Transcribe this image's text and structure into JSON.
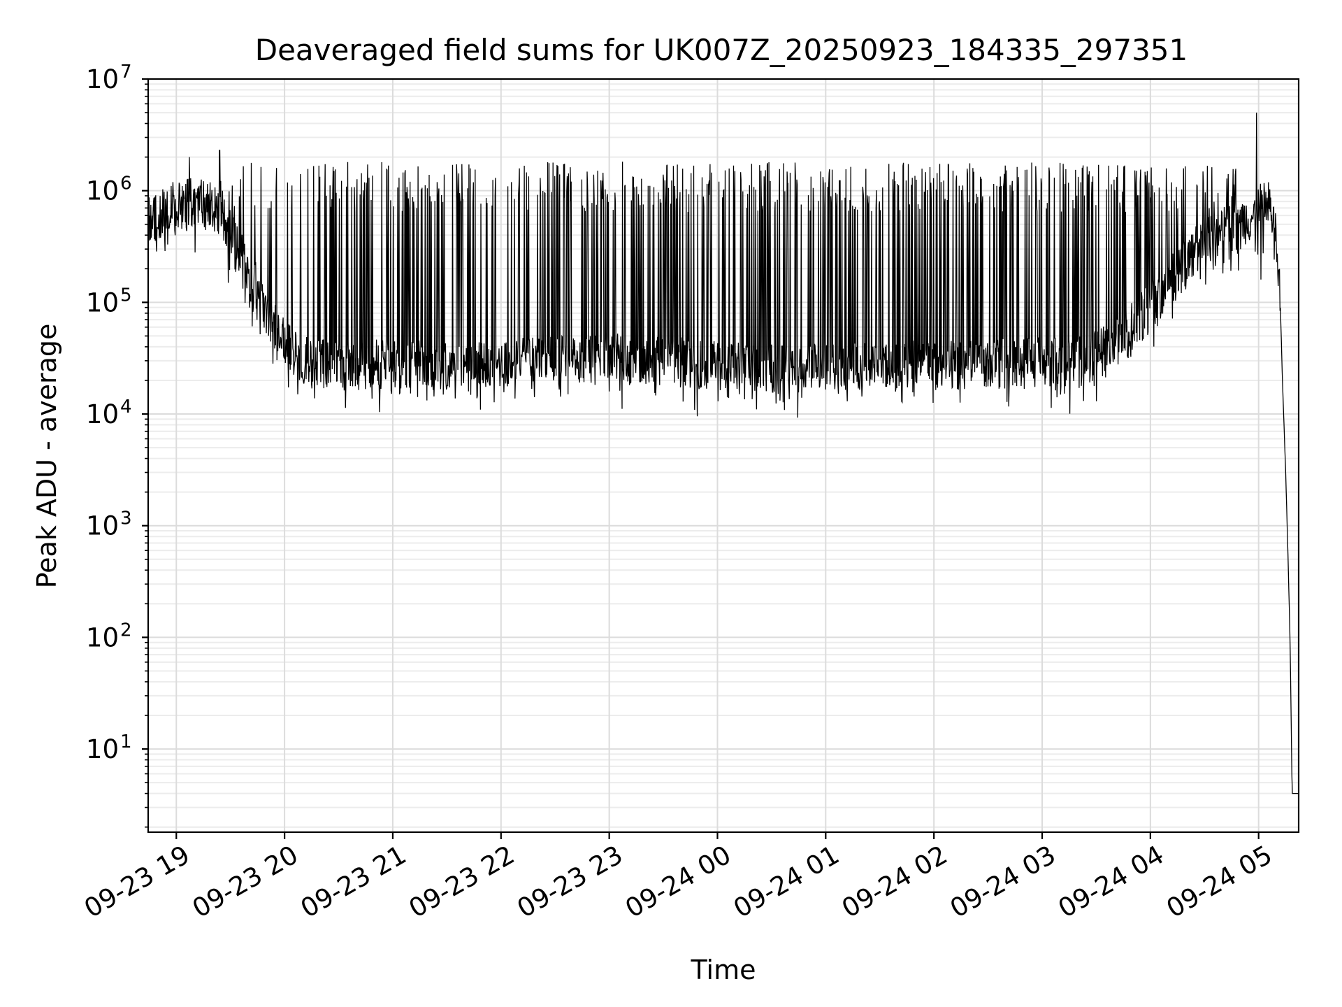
{
  "chart_data": {
    "type": "line",
    "title": "Deaveraged field sums for UK007Z_20250923_184335_297351",
    "xlabel": "Time",
    "ylabel": "Peak ADU - average",
    "yscale": "log",
    "ylim": [
      1.8,
      10000000
    ],
    "grid": true,
    "x_range_hours": [
      -0.26,
      10.37
    ],
    "x_tick_labels": [
      "09-23 19",
      "09-23 20",
      "09-23 21",
      "09-23 22",
      "09-23 23",
      "09-24 00",
      "09-24 01",
      "09-24 02",
      "09-24 03",
      "09-24 04",
      "09-24 05"
    ],
    "y_ticks": [
      {
        "base": "10",
        "exp": "1",
        "value": 10
      },
      {
        "base": "10",
        "exp": "2",
        "value": 100
      },
      {
        "base": "10",
        "exp": "3",
        "value": 1000
      },
      {
        "base": "10",
        "exp": "4",
        "value": 10000
      },
      {
        "base": "10",
        "exp": "5",
        "value": 100000
      },
      {
        "base": "10",
        "exp": "6",
        "value": 1000000
      },
      {
        "base": "10",
        "exp": "7",
        "value": 10000000
      }
    ],
    "series": [
      {
        "name": "Peak ADU - average",
        "color": "#000000",
        "baseline_points": [
          [
            -0.26,
            550000
          ],
          [
            0.0,
            750000
          ],
          [
            0.2,
            800000
          ],
          [
            0.3,
            750000
          ],
          [
            0.4,
            600000
          ],
          [
            0.5,
            400000
          ],
          [
            0.6,
            250000
          ],
          [
            0.7,
            160000
          ],
          [
            0.8,
            100000
          ],
          [
            0.9,
            65000
          ],
          [
            1.0,
            45000
          ],
          [
            1.1,
            35000
          ],
          [
            1.2,
            30000
          ],
          [
            1.5,
            27000
          ],
          [
            2.0,
            28000
          ],
          [
            2.5,
            27000
          ],
          [
            3.0,
            28000
          ],
          [
            3.5,
            30000
          ],
          [
            4.0,
            33000
          ],
          [
            4.5,
            30000
          ],
          [
            5.0,
            27000
          ],
          [
            5.5,
            26000
          ],
          [
            6.0,
            27000
          ],
          [
            6.5,
            28000
          ],
          [
            7.0,
            27000
          ],
          [
            7.5,
            28000
          ],
          [
            8.0,
            29000
          ],
          [
            8.4,
            30000
          ],
          [
            8.6,
            38000
          ],
          [
            8.8,
            55000
          ],
          [
            9.0,
            90000
          ],
          [
            9.2,
            160000
          ],
          [
            9.4,
            280000
          ],
          [
            9.6,
            420000
          ],
          [
            9.8,
            520000
          ],
          [
            9.98,
            600000
          ],
          [
            10.05,
            800000
          ],
          [
            10.1,
            720000
          ],
          [
            10.15,
            500000
          ],
          [
            10.2,
            100000
          ],
          [
            10.22,
            20000
          ],
          [
            10.25,
            3000
          ],
          [
            10.27,
            600
          ],
          [
            10.29,
            100
          ],
          [
            10.31,
            4
          ],
          [
            10.37,
            4
          ]
        ],
        "spike_band_hours": [
          0.3,
          9.8
        ],
        "spike_peak_typical": 1200000,
        "spike_peaks_notable": [
          [
            0.12,
            2000000
          ],
          [
            0.4,
            2300000
          ],
          [
            9.98,
            5000000
          ]
        ],
        "spike_minima_notable": [
          [
            -0.08,
            330000
          ],
          [
            10.02,
            160000
          ],
          [
            8.5,
            13000
          ],
          [
            6.2,
            13000
          ]
        ]
      }
    ]
  }
}
